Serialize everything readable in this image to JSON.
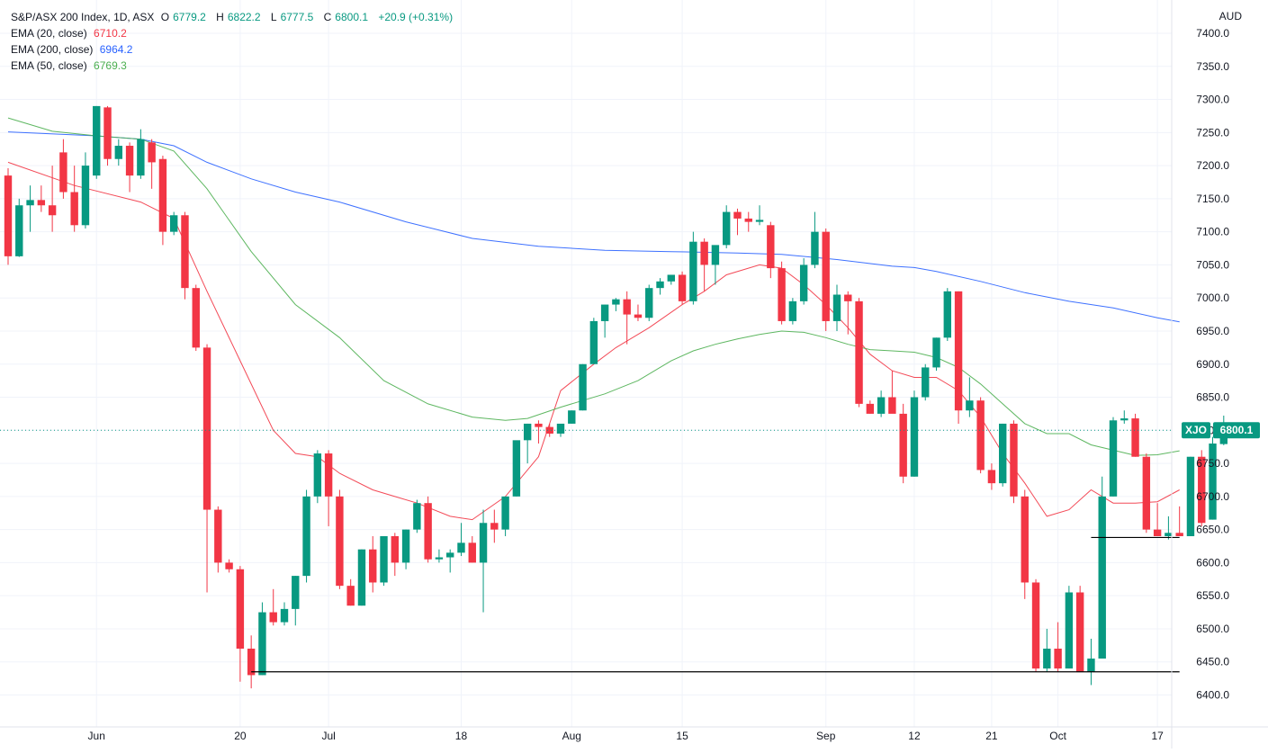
{
  "chart_data": {
    "type": "candlestick",
    "title": "S&P/ASX 200 Index, 1D, ASX",
    "ohlc_header": {
      "open_label": "O",
      "open": "6779.2",
      "high_label": "H",
      "high": "6822.2",
      "low_label": "L",
      "low": "6777.5",
      "close_label": "C",
      "close": "6800.1",
      "change": "+20.9 (+0.31%)"
    },
    "currency": "AUD",
    "symbol_tag": "XJO",
    "last_price": "6800.1",
    "y_axis": {
      "min": 6380,
      "max": 7420,
      "ticks": [
        7400,
        7350,
        7300,
        7250,
        7200,
        7150,
        7100,
        7050,
        7000,
        6950,
        6900,
        6850,
        6800,
        6750,
        6700,
        6650,
        6600,
        6550,
        6500,
        6450,
        6400
      ]
    },
    "x_tick_labels": [
      {
        "label": "Jun",
        "bar": 8
      },
      {
        "label": "20",
        "bar": 21
      },
      {
        "label": "Jul",
        "bar": 29
      },
      {
        "label": "18",
        "bar": 41
      },
      {
        "label": "Aug",
        "bar": 51
      },
      {
        "label": "15",
        "bar": 61
      },
      {
        "label": "Sep",
        "bar": 74
      },
      {
        "label": "12",
        "bar": 82
      },
      {
        "label": "21",
        "bar": 89
      },
      {
        "label": "Oct",
        "bar": 95
      },
      {
        "label": "17",
        "bar": 104
      }
    ],
    "indicators": [
      {
        "name": "EMA (20, close)",
        "value": "6710.2",
        "color": "#f23645",
        "points": [
          [
            0,
            7205
          ],
          [
            6,
            7170
          ],
          [
            12,
            7145
          ],
          [
            15,
            7120
          ],
          [
            18,
            7010
          ],
          [
            21,
            6905
          ],
          [
            24,
            6800
          ],
          [
            26,
            6765
          ],
          [
            28,
            6760
          ],
          [
            30,
            6735
          ],
          [
            33,
            6710
          ],
          [
            35,
            6700
          ],
          [
            37,
            6690
          ],
          [
            40,
            6670
          ],
          [
            42,
            6665
          ],
          [
            45,
            6700
          ],
          [
            48,
            6760
          ],
          [
            50,
            6860
          ],
          [
            53,
            6900
          ],
          [
            55,
            6925
          ],
          [
            58,
            6955
          ],
          [
            61,
            6990
          ],
          [
            63,
            7010
          ],
          [
            65,
            7035
          ],
          [
            68,
            7050
          ],
          [
            70,
            7045
          ],
          [
            72,
            7020
          ],
          [
            74,
            6990
          ],
          [
            76,
            6955
          ],
          [
            78,
            6915
          ],
          [
            80,
            6890
          ],
          [
            82,
            6880
          ],
          [
            84,
            6880
          ],
          [
            86,
            6860
          ],
          [
            88,
            6820
          ],
          [
            90,
            6765
          ],
          [
            92,
            6720
          ],
          [
            94,
            6670
          ],
          [
            96,
            6680
          ],
          [
            98,
            6710
          ],
          [
            100,
            6690
          ],
          [
            102,
            6690
          ],
          [
            104,
            6692
          ],
          [
            106,
            6710
          ]
        ]
      },
      {
        "name": "EMA (200, close)",
        "value": "6964.2",
        "color": "#2962ff",
        "points": [
          [
            0,
            7251
          ],
          [
            8,
            7245
          ],
          [
            12,
            7240
          ],
          [
            15,
            7230
          ],
          [
            18,
            7205
          ],
          [
            22,
            7180
          ],
          [
            26,
            7160
          ],
          [
            30,
            7145
          ],
          [
            36,
            7115
          ],
          [
            42,
            7090
          ],
          [
            48,
            7078
          ],
          [
            54,
            7072
          ],
          [
            60,
            7070
          ],
          [
            66,
            7068
          ],
          [
            70,
            7066
          ],
          [
            75,
            7058
          ],
          [
            80,
            7048
          ],
          [
            82,
            7046
          ],
          [
            84,
            7040
          ],
          [
            88,
            7025
          ],
          [
            92,
            7008
          ],
          [
            96,
            6995
          ],
          [
            100,
            6985
          ],
          [
            104,
            6970
          ],
          [
            106,
            6964
          ]
        ]
      },
      {
        "name": "EMA (50, close)",
        "value": "6769.3",
        "color": "#4caf50",
        "points": [
          [
            0,
            7272
          ],
          [
            4,
            7252
          ],
          [
            8,
            7245
          ],
          [
            12,
            7240
          ],
          [
            15,
            7222
          ],
          [
            18,
            7165
          ],
          [
            22,
            7070
          ],
          [
            26,
            6990
          ],
          [
            30,
            6940
          ],
          [
            34,
            6875
          ],
          [
            38,
            6840
          ],
          [
            42,
            6820
          ],
          [
            45,
            6815
          ],
          [
            47,
            6818
          ],
          [
            50,
            6835
          ],
          [
            54,
            6855
          ],
          [
            57,
            6875
          ],
          [
            60,
            6905
          ],
          [
            62,
            6920
          ],
          [
            64,
            6930
          ],
          [
            66,
            6938
          ],
          [
            68,
            6945
          ],
          [
            70,
            6950
          ],
          [
            72,
            6948
          ],
          [
            74,
            6940
          ],
          [
            76,
            6930
          ],
          [
            78,
            6922
          ],
          [
            80,
            6920
          ],
          [
            82,
            6918
          ],
          [
            84,
            6910
          ],
          [
            86,
            6895
          ],
          [
            88,
            6870
          ],
          [
            90,
            6840
          ],
          [
            92,
            6810
          ],
          [
            94,
            6795
          ],
          [
            96,
            6795
          ],
          [
            98,
            6778
          ],
          [
            100,
            6770
          ],
          [
            102,
            6762
          ],
          [
            104,
            6763
          ],
          [
            106,
            6769
          ]
        ]
      }
    ],
    "candles": [
      [
        7185,
        7196,
        7050,
        7063
      ],
      [
        7063,
        7150,
        7062,
        7140
      ],
      [
        7140,
        7170,
        7100,
        7148
      ],
      [
        7148,
        7170,
        7130,
        7140
      ],
      [
        7140,
        7200,
        7100,
        7125
      ],
      [
        7220,
        7240,
        7150,
        7160
      ],
      [
        7160,
        7200,
        7100,
        7110
      ],
      [
        7110,
        7220,
        7105,
        7200
      ],
      [
        7185,
        7290,
        7180,
        7290
      ],
      [
        7288,
        7290,
        7200,
        7210
      ],
      [
        7210,
        7240,
        7200,
        7230
      ],
      [
        7230,
        7235,
        7160,
        7185
      ],
      [
        7185,
        7255,
        7180,
        7240
      ],
      [
        7235,
        7240,
        7165,
        7205
      ],
      [
        7210,
        7215,
        7080,
        7100
      ],
      [
        7100,
        7130,
        7095,
        7125
      ],
      [
        7125,
        7130,
        6998,
        7015
      ],
      [
        7015,
        7020,
        6920,
        6925
      ],
      [
        6925,
        6930,
        6555,
        6680
      ],
      [
        6680,
        6685,
        6585,
        6600
      ],
      [
        6600,
        6605,
        6585,
        6590
      ],
      [
        6590,
        6595,
        6420,
        6470
      ],
      [
        6470,
        6490,
        6410,
        6430
      ],
      [
        6430,
        6540,
        6430,
        6525
      ],
      [
        6525,
        6560,
        6505,
        6510
      ],
      [
        6510,
        6540,
        6505,
        6530
      ],
      [
        6530,
        6580,
        6505,
        6580
      ],
      [
        6580,
        6710,
        6570,
        6700
      ],
      [
        6700,
        6770,
        6690,
        6765
      ],
      [
        6765,
        6770,
        6655,
        6700
      ],
      [
        6700,
        6710,
        6560,
        6565
      ],
      [
        6565,
        6575,
        6535,
        6535
      ],
      [
        6535,
        6620,
        6535,
        6620
      ],
      [
        6620,
        6640,
        6555,
        6570
      ],
      [
        6570,
        6640,
        6565,
        6640
      ],
      [
        6640,
        6645,
        6580,
        6600
      ],
      [
        6600,
        6650,
        6590,
        6650
      ],
      [
        6650,
        6695,
        6645,
        6690
      ],
      [
        6690,
        6700,
        6600,
        6605
      ],
      [
        6605,
        6620,
        6600,
        6608
      ],
      [
        6608,
        6620,
        6585,
        6615
      ],
      [
        6615,
        6660,
        6610,
        6630
      ],
      [
        6630,
        6640,
        6600,
        6600
      ],
      [
        6600,
        6680,
        6525,
        6660
      ],
      [
        6660,
        6680,
        6630,
        6650
      ],
      [
        6650,
        6700,
        6640,
        6700
      ],
      [
        6700,
        6780,
        6700,
        6785
      ],
      [
        6785,
        6810,
        6750,
        6810
      ],
      [
        6810,
        6815,
        6780,
        6805
      ],
      [
        6805,
        6810,
        6790,
        6795
      ],
      [
        6795,
        6810,
        6790,
        6810
      ],
      [
        6810,
        6830,
        6810,
        6830
      ],
      [
        6830,
        6900,
        6830,
        6900
      ],
      [
        6900,
        6970,
        6900,
        6965
      ],
      [
        6965,
        6990,
        6940,
        6990
      ],
      [
        6990,
        7000,
        6980,
        6998
      ],
      [
        6998,
        7010,
        6930,
        6975
      ],
      [
        6975,
        6990,
        6965,
        6970
      ],
      [
        6970,
        7020,
        6965,
        7015
      ],
      [
        7015,
        7030,
        7005,
        7025
      ],
      [
        7025,
        7035,
        7020,
        7035
      ],
      [
        7035,
        7040,
        6990,
        6995
      ],
      [
        6995,
        7100,
        6990,
        7085
      ],
      [
        7085,
        7090,
        7010,
        7050
      ],
      [
        7050,
        7070,
        7020,
        7080
      ],
      [
        7080,
        7140,
        7075,
        7130
      ],
      [
        7130,
        7135,
        7095,
        7120
      ],
      [
        7120,
        7130,
        7100,
        7115
      ],
      [
        7115,
        7140,
        7110,
        7118
      ],
      [
        7110,
        7115,
        7030,
        7045
      ],
      [
        7045,
        7055,
        6960,
        6965
      ],
      [
        6965,
        7000,
        6960,
        6995
      ],
      [
        6995,
        7060,
        6990,
        7050
      ],
      [
        7050,
        7130,
        7045,
        7100
      ],
      [
        7100,
        7105,
        6950,
        6965
      ],
      [
        6965,
        7020,
        6950,
        7005
      ],
      [
        7005,
        7010,
        6945,
        6995
      ],
      [
        6995,
        7000,
        6835,
        6840
      ],
      [
        6840,
        6845,
        6825,
        6825
      ],
      [
        6825,
        6860,
        6820,
        6850
      ],
      [
        6850,
        6890,
        6830,
        6825
      ],
      [
        6825,
        6840,
        6720,
        6730
      ],
      [
        6730,
        6860,
        6730,
        6850
      ],
      [
        6850,
        6900,
        6845,
        6895
      ],
      [
        6895,
        6940,
        6890,
        6940
      ],
      [
        6940,
        7015,
        6935,
        7010
      ],
      [
        7010,
        7010,
        6810,
        6830
      ],
      [
        6830,
        6880,
        6820,
        6845
      ],
      [
        6845,
        6850,
        6735,
        6740
      ],
      [
        6740,
        6750,
        6710,
        6720
      ],
      [
        6720,
        6810,
        6715,
        6810
      ],
      [
        6810,
        6815,
        6690,
        6700
      ],
      [
        6700,
        6710,
        6545,
        6570
      ],
      [
        6570,
        6575,
        6435,
        6440
      ],
      [
        6440,
        6500,
        6435,
        6470
      ],
      [
        6470,
        6510,
        6435,
        6440
      ],
      [
        6440,
        6565,
        6440,
        6555
      ],
      [
        6555,
        6565,
        6435,
        6435
      ],
      [
        6435,
        6485,
        6415,
        6455
      ],
      [
        6455,
        6730,
        6455,
        6700
      ],
      [
        6700,
        6820,
        6700,
        6815
      ],
      [
        6815,
        6830,
        6810,
        6818
      ],
      [
        6818,
        6825,
        6760,
        6760
      ],
      [
        6760,
        6765,
        6645,
        6650
      ],
      [
        6650,
        6690,
        6640,
        6640
      ],
      [
        6640,
        6670,
        6635,
        6645
      ],
      [
        6645,
        6685,
        6640,
        6640
      ],
      [
        6640,
        6760,
        6640,
        6760
      ],
      [
        6760,
        6770,
        6655,
        6660
      ],
      [
        6665,
        6790,
        6665,
        6780
      ],
      [
        6779.2,
        6822.2,
        6777.5,
        6800.1
      ]
    ],
    "support_lines": [
      {
        "from_bar": 22,
        "to_bar": 106,
        "value": 6435
      },
      {
        "from_bar": 98,
        "to_bar": 106,
        "value": 6638
      }
    ],
    "colors": {
      "up": "#089981",
      "down": "#f23645",
      "grid": "#f0f3fa",
      "axis_text": "#131722",
      "line": "#000000"
    }
  }
}
